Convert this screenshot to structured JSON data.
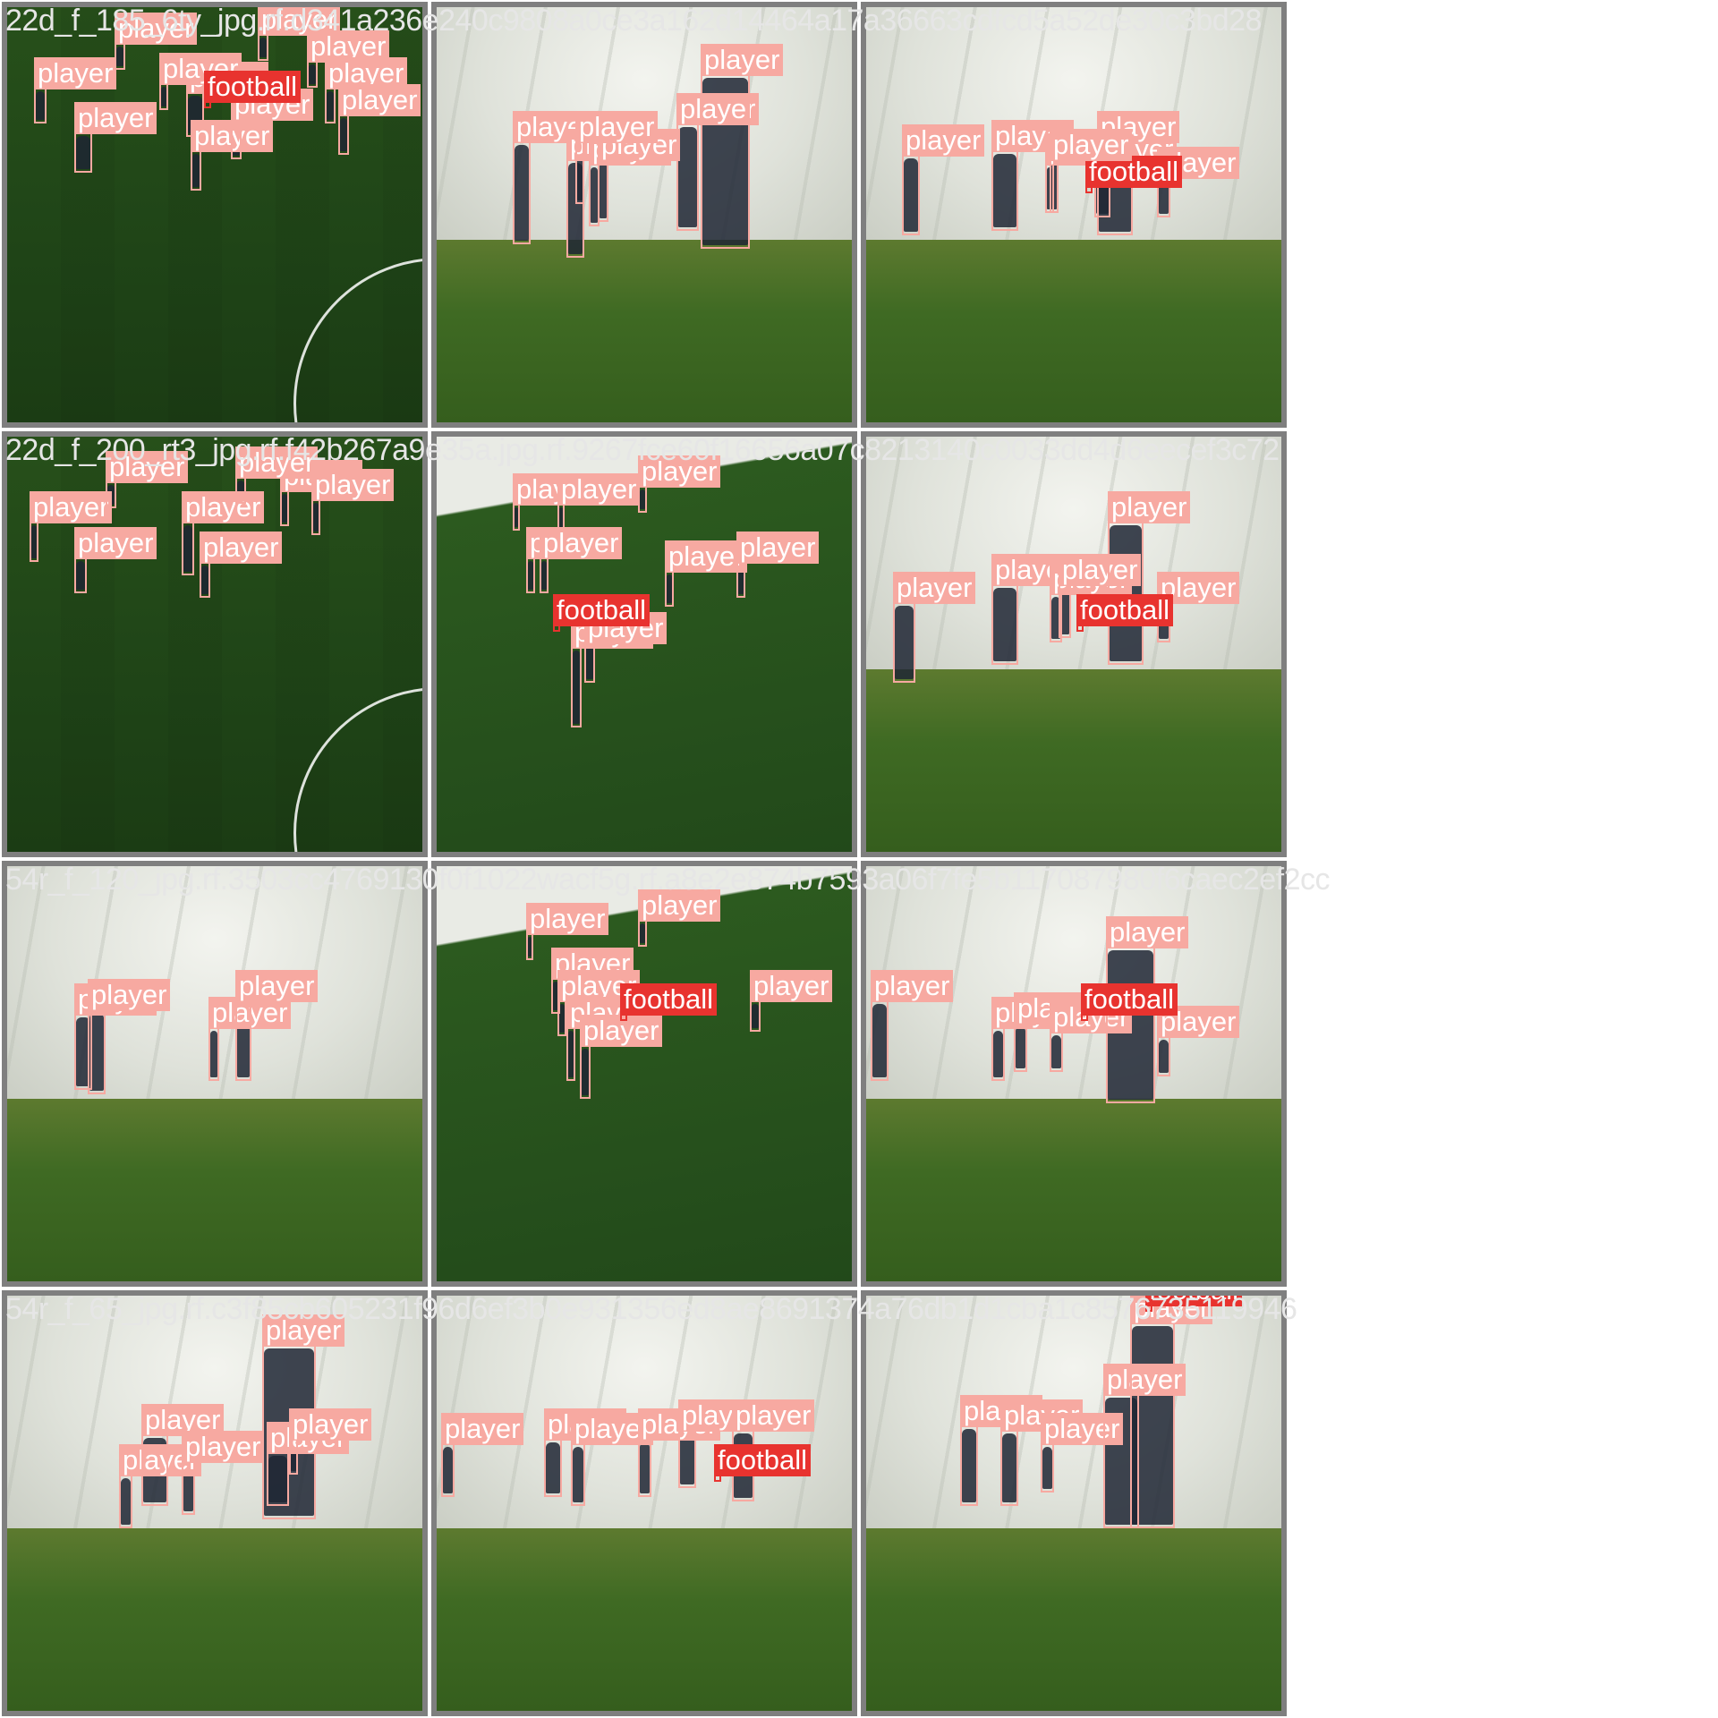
{
  "colors": {
    "player": "#f7a9a1",
    "football": "#e8332f",
    "tile_border": "#7f7f7f",
    "filename_text": "#e6e6e6"
  },
  "class_labels": {
    "player": "player",
    "football": "football"
  },
  "tiles": [
    {
      "filename": "22d_f_185_6ty_jpg.rf.d341a236e240c9808a0ce3a162d14464a17a36663cdfcd5a52de30c3bd28"
    },
    {
      "filename": ""
    },
    {
      "filename": ""
    },
    {
      "filename": "22d_f_200_rt3_jpg.rf.f42b267a9e35a.jpg.rf.9267fce60f16656a07c8213140c0033dd4d6eecef3c72"
    },
    {
      "filename": ""
    },
    {
      "filename": ""
    },
    {
      "filename": "54r_f_120_jpg.rf.3503cc4769130f0f1022wacf5g.rf.a8e2e874b7593a06f7fe5b117087980f6caec2ef2cc"
    },
    {
      "filename": ""
    },
    {
      "filename": ""
    },
    {
      "filename": "54r_f_65_jpg.rf.c3f85cb605231f96d6ef3b0e931356ed8ae8691374a76db1d1cba1c8576735119946"
    },
    {
      "filename": ""
    },
    {
      "filename": ""
    }
  ]
}
